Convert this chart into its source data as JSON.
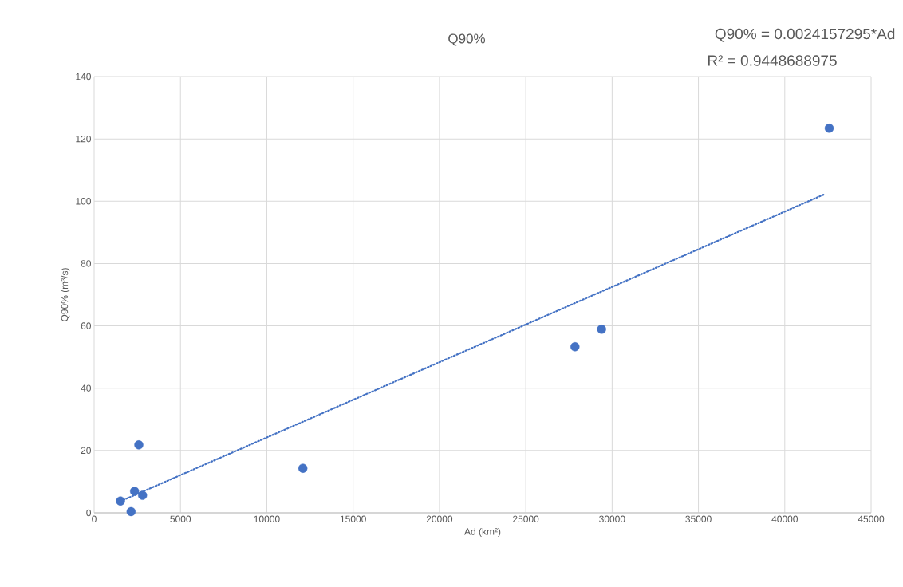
{
  "chart_data": {
    "type": "scatter",
    "title": "Q90%",
    "xlabel": "Ad (km²)",
    "ylabel": "Q90% (m³/s)",
    "annotations": [
      "Q90% = 0.0024157295*Ad",
      "R² = 0.9448688975"
    ],
    "xlim": [
      0,
      45000
    ],
    "ylim": [
      0,
      140
    ],
    "xticks": [
      0,
      5000,
      10000,
      15000,
      20000,
      25000,
      30000,
      35000,
      40000,
      45000
    ],
    "yticks": [
      0,
      20,
      40,
      60,
      80,
      100,
      120,
      140
    ],
    "grid": true,
    "series": [
      {
        "type": "scatter",
        "marker": "circle",
        "color": "#4472c4",
        "x": [
          1525,
          2140,
          2343,
          2588,
          2805,
          12090,
          27850,
          29390,
          42575
        ],
        "values": [
          3.8,
          0.4,
          6.9,
          21.8,
          5.6,
          14.3,
          53.3,
          58.9,
          123.4
        ]
      },
      {
        "type": "line",
        "color": "#4472c4",
        "line_style": "dotted",
        "x": [
          1525,
          42330
        ],
        "values": [
          3.7,
          102.3
        ]
      }
    ]
  }
}
